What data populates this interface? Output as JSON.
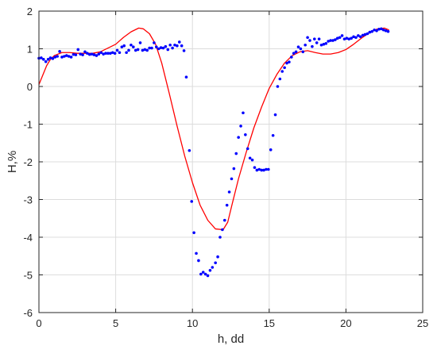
{
  "chart_data": {
    "type": "scatter",
    "xlabel": "h, dd",
    "ylabel": "H,%",
    "xlim": [
      0,
      25
    ],
    "ylim": [
      -6,
      2
    ],
    "x_ticks": [
      0,
      5,
      10,
      15,
      20,
      25
    ],
    "y_ticks": [
      -6,
      -5,
      -4,
      -3,
      -2,
      -1,
      0,
      1,
      2
    ],
    "grid": true,
    "colors": {
      "points": "#0000ff",
      "curve": "#ff0000",
      "grid": "#dcdcdc",
      "axes": "#262626"
    },
    "series": [
      {
        "kind": "scatter",
        "points": [
          [
            0.0,
            0.75
          ],
          [
            0.15,
            0.76
          ],
          [
            0.3,
            0.72
          ],
          [
            0.45,
            0.66
          ],
          [
            0.6,
            0.72
          ],
          [
            0.75,
            0.76
          ],
          [
            0.9,
            0.74
          ],
          [
            1.05,
            0.78
          ],
          [
            1.2,
            0.8
          ],
          [
            1.35,
            0.93
          ],
          [
            1.5,
            0.78
          ],
          [
            1.65,
            0.8
          ],
          [
            1.8,
            0.82
          ],
          [
            1.95,
            0.8
          ],
          [
            2.1,
            0.78
          ],
          [
            2.25,
            0.85
          ],
          [
            2.4,
            0.84
          ],
          [
            2.55,
            0.98
          ],
          [
            2.7,
            0.86
          ],
          [
            2.85,
            0.84
          ],
          [
            3.0,
            0.92
          ],
          [
            3.15,
            0.88
          ],
          [
            3.3,
            0.85
          ],
          [
            3.45,
            0.86
          ],
          [
            3.6,
            0.84
          ],
          [
            3.75,
            0.82
          ],
          [
            3.9,
            0.86
          ],
          [
            4.05,
            0.9
          ],
          [
            4.2,
            0.86
          ],
          [
            4.35,
            0.88
          ],
          [
            4.5,
            0.88
          ],
          [
            4.65,
            0.88
          ],
          [
            4.8,
            0.9
          ],
          [
            4.95,
            0.88
          ],
          [
            5.1,
            0.96
          ],
          [
            5.25,
            0.9
          ],
          [
            5.4,
            1.05
          ],
          [
            5.55,
            1.08
          ],
          [
            5.7,
            0.9
          ],
          [
            5.85,
            0.96
          ],
          [
            6.0,
            1.1
          ],
          [
            6.15,
            1.05
          ],
          [
            6.3,
            0.96
          ],
          [
            6.45,
            0.98
          ],
          [
            6.6,
            1.16
          ],
          [
            6.75,
            0.96
          ],
          [
            6.9,
            0.98
          ],
          [
            7.05,
            0.96
          ],
          [
            7.2,
            1.02
          ],
          [
            7.35,
            1.02
          ],
          [
            7.5,
            1.16
          ],
          [
            7.65,
            1.05
          ],
          [
            7.8,
            1.0
          ],
          [
            7.95,
            1.03
          ],
          [
            8.1,
            1.02
          ],
          [
            8.25,
            1.06
          ],
          [
            8.4,
            0.98
          ],
          [
            8.55,
            1.1
          ],
          [
            8.7,
            1.02
          ],
          [
            8.85,
            1.1
          ],
          [
            9.0,
            1.08
          ],
          [
            9.15,
            1.18
          ],
          [
            9.3,
            1.08
          ],
          [
            9.45,
            0.95
          ],
          [
            9.6,
            0.25
          ],
          [
            9.8,
            -1.7
          ],
          [
            9.95,
            -3.05
          ],
          [
            10.1,
            -3.88
          ],
          [
            10.25,
            -4.43
          ],
          [
            10.4,
            -4.62
          ],
          [
            10.55,
            -4.98
          ],
          [
            10.7,
            -4.93
          ],
          [
            10.85,
            -4.98
          ],
          [
            11.0,
            -5.02
          ],
          [
            11.15,
            -4.88
          ],
          [
            11.3,
            -4.8
          ],
          [
            11.5,
            -4.68
          ],
          [
            11.65,
            -4.52
          ],
          [
            11.8,
            -4.0
          ],
          [
            11.95,
            -3.8
          ],
          [
            12.1,
            -3.55
          ],
          [
            12.25,
            -3.15
          ],
          [
            12.4,
            -2.8
          ],
          [
            12.55,
            -2.45
          ],
          [
            12.7,
            -2.18
          ],
          [
            12.85,
            -1.78
          ],
          [
            13.0,
            -1.35
          ],
          [
            13.15,
            -1.05
          ],
          [
            13.3,
            -0.7
          ],
          [
            13.45,
            -1.28
          ],
          [
            13.6,
            -1.65
          ],
          [
            13.75,
            -1.9
          ],
          [
            13.9,
            -1.95
          ],
          [
            14.05,
            -2.15
          ],
          [
            14.2,
            -2.22
          ],
          [
            14.35,
            -2.2
          ],
          [
            14.5,
            -2.22
          ],
          [
            14.65,
            -2.22
          ],
          [
            14.8,
            -2.2
          ],
          [
            14.95,
            -2.2
          ],
          [
            15.1,
            -1.68
          ],
          [
            15.25,
            -1.3
          ],
          [
            15.4,
            -0.75
          ],
          [
            15.55,
            0.0
          ],
          [
            15.7,
            0.2
          ],
          [
            15.85,
            0.4
          ],
          [
            16.0,
            0.5
          ],
          [
            16.15,
            0.62
          ],
          [
            16.3,
            0.65
          ],
          [
            16.45,
            0.78
          ],
          [
            16.6,
            0.88
          ],
          [
            16.75,
            0.92
          ],
          [
            16.9,
            1.05
          ],
          [
            17.05,
            1.0
          ],
          [
            17.2,
            0.92
          ],
          [
            17.35,
            1.1
          ],
          [
            17.5,
            1.3
          ],
          [
            17.65,
            1.22
          ],
          [
            17.8,
            1.06
          ],
          [
            17.95,
            1.26
          ],
          [
            18.1,
            1.16
          ],
          [
            18.25,
            1.26
          ],
          [
            18.4,
            1.1
          ],
          [
            18.55,
            1.12
          ],
          [
            18.7,
            1.14
          ],
          [
            18.85,
            1.2
          ],
          [
            19.0,
            1.22
          ],
          [
            19.15,
            1.22
          ],
          [
            19.3,
            1.24
          ],
          [
            19.45,
            1.28
          ],
          [
            19.6,
            1.3
          ],
          [
            19.75,
            1.35
          ],
          [
            19.9,
            1.26
          ],
          [
            20.05,
            1.28
          ],
          [
            20.2,
            1.26
          ],
          [
            20.35,
            1.28
          ],
          [
            20.5,
            1.32
          ],
          [
            20.65,
            1.3
          ],
          [
            20.8,
            1.35
          ],
          [
            20.95,
            1.32
          ],
          [
            21.1,
            1.36
          ],
          [
            21.25,
            1.38
          ],
          [
            21.4,
            1.4
          ],
          [
            21.55,
            1.44
          ],
          [
            21.7,
            1.46
          ],
          [
            21.85,
            1.5
          ],
          [
            22.0,
            1.48
          ],
          [
            22.15,
            1.52
          ],
          [
            22.3,
            1.53
          ],
          [
            22.45,
            1.5
          ],
          [
            22.6,
            1.48
          ],
          [
            22.75,
            1.46
          ]
        ]
      },
      {
        "kind": "line",
        "points": [
          [
            0.0,
            0.05
          ],
          [
            0.25,
            0.3
          ],
          [
            0.5,
            0.55
          ],
          [
            0.75,
            0.72
          ],
          [
            1.0,
            0.82
          ],
          [
            1.5,
            0.9
          ],
          [
            2.0,
            0.9
          ],
          [
            2.5,
            0.88
          ],
          [
            3.0,
            0.88
          ],
          [
            3.5,
            0.88
          ],
          [
            4.0,
            0.92
          ],
          [
            4.5,
            1.02
          ],
          [
            5.0,
            1.12
          ],
          [
            5.5,
            1.3
          ],
          [
            6.0,
            1.45
          ],
          [
            6.5,
            1.55
          ],
          [
            6.8,
            1.53
          ],
          [
            7.2,
            1.4
          ],
          [
            7.6,
            1.12
          ],
          [
            8.0,
            0.62
          ],
          [
            8.5,
            -0.2
          ],
          [
            9.0,
            -1.05
          ],
          [
            9.5,
            -1.85
          ],
          [
            10.0,
            -2.55
          ],
          [
            10.5,
            -3.15
          ],
          [
            11.0,
            -3.55
          ],
          [
            11.5,
            -3.78
          ],
          [
            12.0,
            -3.8
          ],
          [
            12.3,
            -3.6
          ],
          [
            12.6,
            -3.1
          ],
          [
            13.0,
            -2.45
          ],
          [
            13.5,
            -1.75
          ],
          [
            14.0,
            -1.1
          ],
          [
            14.5,
            -0.55
          ],
          [
            15.0,
            -0.05
          ],
          [
            15.5,
            0.32
          ],
          [
            16.0,
            0.62
          ],
          [
            16.5,
            0.82
          ],
          [
            17.0,
            0.92
          ],
          [
            17.5,
            0.95
          ],
          [
            18.0,
            0.9
          ],
          [
            18.5,
            0.86
          ],
          [
            19.0,
            0.86
          ],
          [
            19.5,
            0.9
          ],
          [
            20.0,
            0.98
          ],
          [
            20.5,
            1.12
          ],
          [
            21.0,
            1.28
          ],
          [
            21.5,
            1.42
          ],
          [
            22.0,
            1.52
          ],
          [
            22.5,
            1.55
          ],
          [
            22.8,
            1.5
          ]
        ]
      }
    ]
  }
}
